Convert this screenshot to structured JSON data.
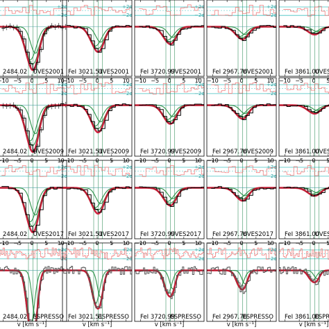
{
  "chart_data": {
    "type": "line",
    "x_axis": {
      "label": "v [km s⁻¹]",
      "range": [
        -12,
        12
      ],
      "ticks": [
        -10,
        -5,
        0,
        5,
        10
      ],
      "tick_labels": [
        "−10",
        "−5",
        "0",
        "5",
        "10"
      ]
    },
    "sigma_labels": [
      "+2σ",
      "−2σ"
    ],
    "columns": [
      {
        "line": "2484.02"
      },
      {
        "line": "FeI 3021.51"
      },
      {
        "line": "FeI 3720.99"
      },
      {
        "line": "FeI 2967.76"
      },
      {
        "line": "FeI 3861.00"
      }
    ],
    "rows": [
      {
        "instrument": "UVES2001"
      },
      {
        "instrument": "UVES2009"
      },
      {
        "instrument": "UVES2017"
      },
      {
        "instrument": "ESPRESSO"
      }
    ],
    "line_depths": [
      0.55,
      0.32,
      0.22,
      0.16,
      0.1
    ],
    "row_depth_scale": [
      1.0,
      1.05,
      1.0,
      1.7
    ],
    "colors": {
      "data": "#000000",
      "model_total": "#c8102e",
      "components": "#1a8a3a",
      "residual": "#f08080",
      "sigma_lines": "#40c0c0",
      "velocity_markers": "#2e8b57",
      "gray_data": "#999999"
    }
  }
}
